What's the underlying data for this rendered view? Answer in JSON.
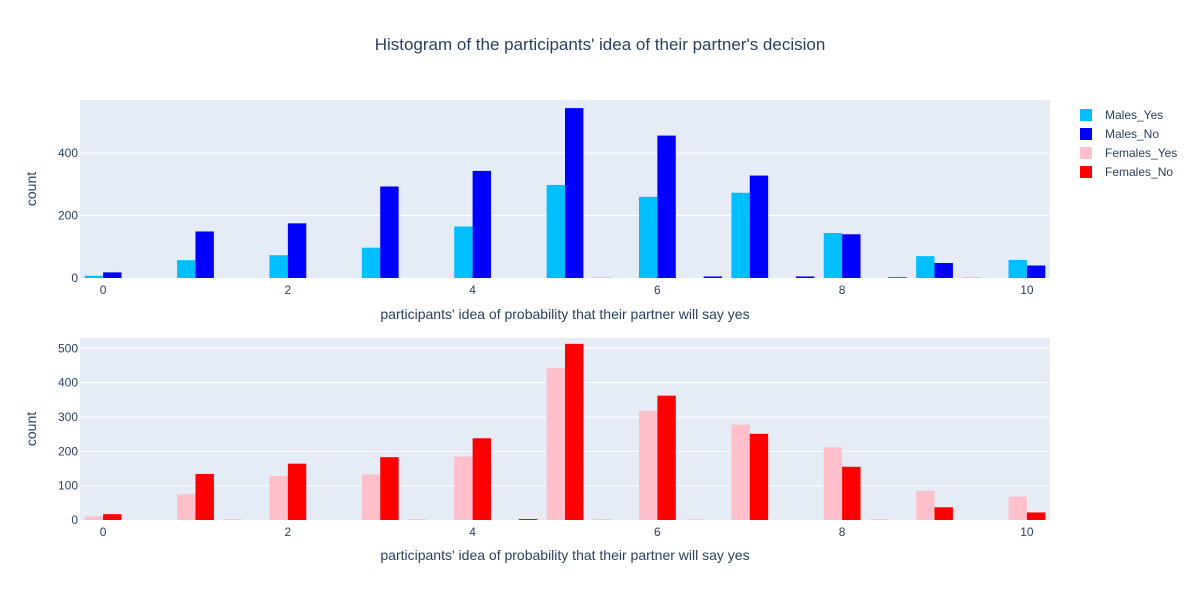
{
  "title": "Histogram of the participants' idea of their partner's decision",
  "legend": {
    "items": [
      {
        "name": "Males_Yes",
        "color": "#00bfff"
      },
      {
        "name": "Males_No",
        "color": "#0000ff"
      },
      {
        "name": "Females_Yes",
        "color": "#ffc0cb"
      },
      {
        "name": "Females_No",
        "color": "#ff0000"
      }
    ]
  },
  "chart_data": [
    {
      "type": "bar",
      "xlabel": "participants' idea of probability that their partner will say yes",
      "ylabel": "count",
      "xlim": [
        -0.25,
        10.25
      ],
      "ylim": [
        0,
        570
      ],
      "x_ticks": [
        0,
        2,
        4,
        6,
        8,
        10
      ],
      "y_ticks": [
        0,
        200,
        400
      ],
      "grid": true,
      "x": [
        0,
        1,
        2,
        3,
        4,
        5,
        6,
        7,
        8,
        9,
        10
      ],
      "x_minor": [
        5.5,
        6.5,
        7.5,
        8.5,
        9.5
      ],
      "series": [
        {
          "name": "Males_Yes",
          "color": "#00bfff",
          "values": [
            7,
            57,
            73,
            97,
            165,
            298,
            260,
            273,
            144,
            70,
            58
          ],
          "minor_values": [
            1,
            0,
            0,
            0,
            1
          ]
        },
        {
          "name": "Males_No",
          "color": "#0000ff",
          "values": [
            18,
            149,
            175,
            293,
            343,
            544,
            456,
            328,
            140,
            48,
            40
          ],
          "minor_values": [
            0,
            5,
            5,
            2,
            0
          ]
        }
      ]
    },
    {
      "type": "bar",
      "xlabel": "participants' idea of probability that their partner will say yes",
      "ylabel": "count",
      "xlim": [
        -0.25,
        10.25
      ],
      "ylim": [
        0,
        530
      ],
      "x_ticks": [
        0,
        2,
        4,
        6,
        8,
        10
      ],
      "y_ticks": [
        0,
        100,
        200,
        300,
        400,
        500
      ],
      "grid": true,
      "x": [
        0,
        1,
        2,
        3,
        4,
        5,
        6,
        7,
        8,
        9,
        10
      ],
      "x_minor": [
        1.5,
        3.5,
        4.5,
        5.5,
        6.5,
        8.5
      ],
      "series": [
        {
          "name": "Females_Yes",
          "color": "#ffc0cb",
          "values": [
            10,
            75,
            128,
            133,
            185,
            443,
            318,
            278,
            212,
            85,
            68
          ],
          "minor_values": [
            3,
            3,
            0,
            3,
            2,
            3
          ]
        },
        {
          "name": "Females_No",
          "color": "#ff0000",
          "values": [
            17,
            134,
            164,
            183,
            238,
            513,
            362,
            251,
            155,
            37,
            22
          ],
          "minor_values": [
            0,
            0,
            3,
            0,
            0,
            0
          ]
        }
      ]
    }
  ]
}
